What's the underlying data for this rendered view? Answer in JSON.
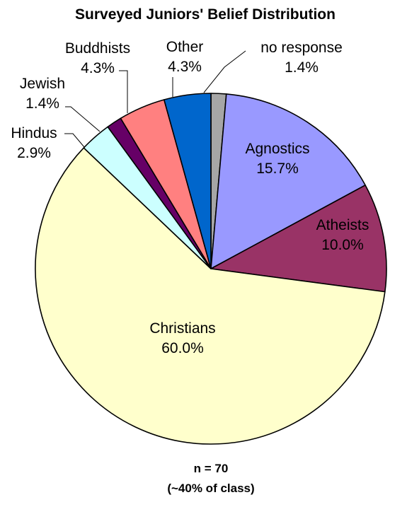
{
  "chart_data": {
    "type": "pie",
    "title": "Surveyed Juniors' Belief Distribution",
    "slices": [
      {
        "label": "no response",
        "value": 1.4,
        "value_label": "1.4%",
        "color": "#a6a6a6"
      },
      {
        "label": "Agnostics",
        "value": 15.7,
        "value_label": "15.7%",
        "color": "#9999ff"
      },
      {
        "label": "Atheists",
        "value": 10.0,
        "value_label": "10.0%",
        "color": "#993366"
      },
      {
        "label": "Christians",
        "value": 60.0,
        "value_label": "60.0%",
        "color": "#ffffcc"
      },
      {
        "label": "Hindus",
        "value": 2.9,
        "value_label": "2.9%",
        "color": "#ccffff"
      },
      {
        "label": "Jewish",
        "value": 1.4,
        "value_label": "1.4%",
        "color": "#660066"
      },
      {
        "label": "Buddhists",
        "value": 4.3,
        "value_label": "4.3%",
        "color": "#ff8080"
      },
      {
        "label": "Other",
        "value": 4.3,
        "value_label": "4.3%",
        "color": "#0066cc"
      }
    ],
    "footnote_lines": [
      "n = 70",
      "(~40% of class)"
    ]
  }
}
